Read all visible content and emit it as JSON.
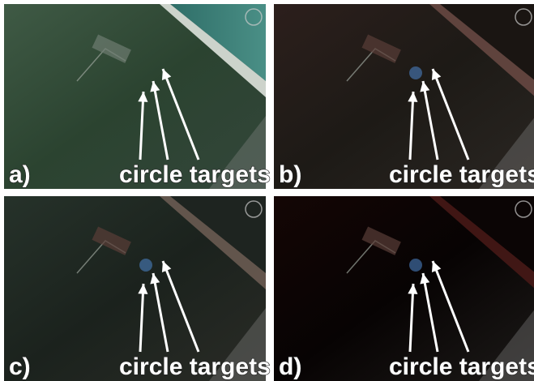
{
  "panels": [
    {
      "label": "a)",
      "annotation": "circle targets"
    },
    {
      "label": "b)",
      "annotation": "circle targets"
    },
    {
      "label": "c)",
      "annotation": "circle targets"
    },
    {
      "label": "d)",
      "annotation": "circle targets"
    }
  ]
}
